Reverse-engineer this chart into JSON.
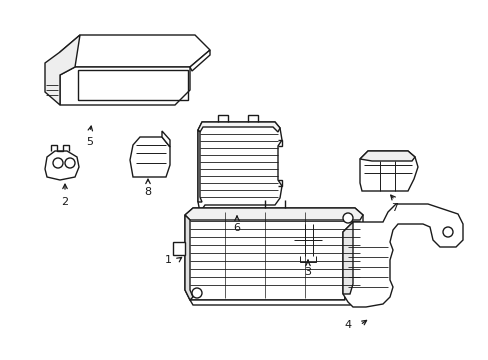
{
  "background_color": "#ffffff",
  "line_color": "#1a1a1a",
  "line_width": 1.0,
  "label_fontsize": 8,
  "figsize": [
    4.89,
    3.6
  ],
  "dpi": 100
}
